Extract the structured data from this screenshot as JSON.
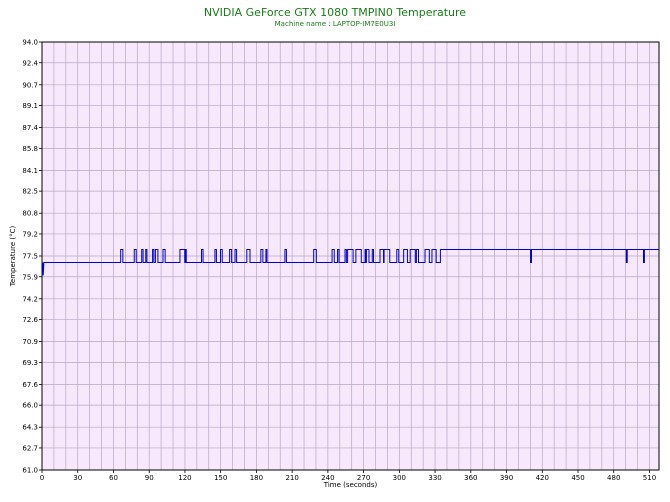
{
  "chart_data": {
    "type": "line",
    "title": "NVIDIA GeForce GTX 1080 TMPIN0 Temperature",
    "subtitle": "Machine name : LAPTOP-IM7E0U3I",
    "xlabel": "Time (seconds)",
    "ylabel": "Temperature (°C)",
    "xlim": [
      0,
      518
    ],
    "ylim": [
      61.0,
      94.0
    ],
    "x_ticks": [
      "0",
      "30",
      "60",
      "90",
      "120",
      "150",
      "180",
      "210",
      "240",
      "270",
      "300",
      "330",
      "360",
      "390",
      "420",
      "450",
      "480",
      "510"
    ],
    "y_ticks": [
      "94.0",
      "92.4",
      "90.7",
      "89.1",
      "87.4",
      "85.8",
      "84.1",
      "82.5",
      "80.8",
      "79.2",
      "77.5",
      "75.9",
      "74.2",
      "72.6",
      "70.9",
      "69.3",
      "67.6",
      "66.0",
      "64.3",
      "62.7",
      "61.0"
    ],
    "grid": true,
    "colors": {
      "line": "#0000cc",
      "plot_bg": "#f7e9fb",
      "grid": "#b8a6c6",
      "title": "#1a7a1a"
    },
    "series": [
      {
        "values_x": [
          0,
          1,
          1.5,
          2,
          55,
          55.5,
          57,
          57.5,
          400,
          518
        ],
        "values_y": [
          76.0,
          77.0,
          76.2,
          77.0,
          77.0,
          78.0,
          78.0,
          77.0,
          78.0,
          78.0
        ],
        "note_pattern": "baseline 77.0 °C with frequent spikes to 78.0 °C"
      }
    ]
  }
}
